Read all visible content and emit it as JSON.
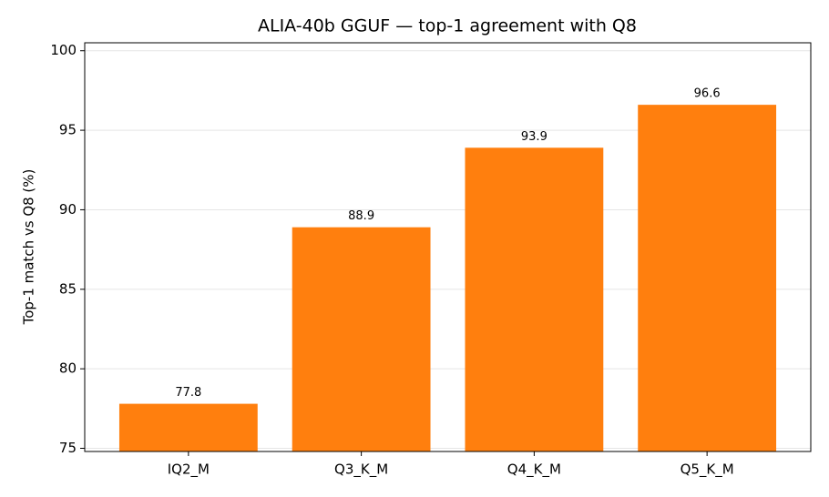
{
  "chart_data": {
    "type": "bar",
    "title": "ALIA-40b GGUF — top-1 agreement with Q8",
    "y_label": "Top-1 match vs Q8 (%)",
    "categories": [
      "IQ2_M",
      "Q3_K_M",
      "Q4_K_M",
      "Q5_K_M"
    ],
    "values": [
      77.8,
      88.9,
      93.9,
      96.6
    ],
    "color": "#ff7f0e",
    "ylim": [
      74.8,
      100.5
    ],
    "yticks": [
      75,
      80,
      85,
      90,
      95,
      100
    ],
    "grid": true
  }
}
